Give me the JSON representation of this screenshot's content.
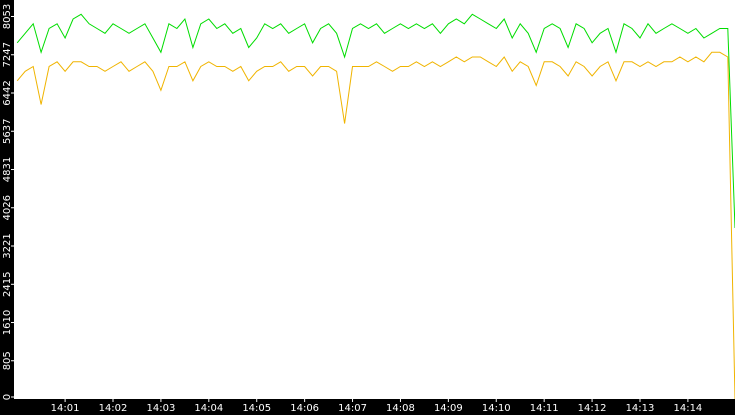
{
  "chart_data": {
    "type": "line",
    "x": [
      0,
      10,
      20,
      30,
      40,
      50,
      60,
      70,
      80,
      90,
      100,
      110,
      120,
      130,
      140,
      150,
      160,
      170,
      180,
      190,
      200,
      210,
      220,
      230,
      240,
      250,
      260,
      270,
      280,
      290,
      300,
      310,
      320,
      330,
      340,
      350,
      360,
      370,
      380,
      390,
      400,
      410,
      420,
      430,
      440,
      450,
      460,
      470,
      480,
      490,
      500,
      510,
      520,
      530,
      540,
      550,
      560,
      570,
      580,
      590,
      600,
      610,
      620,
      630,
      640,
      650,
      660,
      670,
      680,
      690,
      700,
      710,
      720,
      730,
      740,
      750,
      760,
      770,
      780,
      790,
      800,
      810,
      820,
      830,
      840,
      850,
      860,
      870,
      880,
      890,
      899
    ],
    "series": [
      {
        "color": "#00dd00",
        "values": [
          7500,
          7700,
          7900,
          7300,
          7800,
          7900,
          7600,
          8000,
          8100,
          7900,
          7800,
          7700,
          7900,
          7800,
          7700,
          7800,
          7900,
          7600,
          7300,
          7900,
          7800,
          8000,
          7400,
          7900,
          8000,
          7800,
          7900,
          7700,
          7800,
          7400,
          7600,
          7900,
          7800,
          7900,
          7700,
          7800,
          7900,
          7500,
          7800,
          7900,
          7700,
          7200,
          7800,
          7900,
          7800,
          7900,
          7700,
          7800,
          7900,
          7800,
          7900,
          7800,
          7900,
          7700,
          7900,
          8000,
          7900,
          8100,
          8000,
          7900,
          7800,
          8000,
          7600,
          7900,
          7700,
          7300,
          7800,
          7900,
          7800,
          7400,
          7900,
          7800,
          7500,
          7700,
          7800,
          7300,
          7900,
          7800,
          7600,
          7900,
          7700,
          7800,
          7900,
          7800,
          7700,
          7800,
          7600,
          7700,
          7800,
          7800,
          3600
        ]
      },
      {
        "color": "#f0b400",
        "values": [
          6700,
          6900,
          7000,
          6200,
          7000,
          7100,
          6900,
          7100,
          7100,
          7000,
          7000,
          6900,
          7000,
          7100,
          6900,
          7000,
          7100,
          6900,
          6500,
          7000,
          7000,
          7100,
          6700,
          7000,
          7100,
          7000,
          7000,
          6900,
          7000,
          6700,
          6900,
          7000,
          7000,
          7100,
          6900,
          7000,
          7000,
          6800,
          7000,
          7000,
          6900,
          5800,
          7000,
          7000,
          7000,
          7100,
          7000,
          6900,
          7000,
          7000,
          7100,
          7000,
          7100,
          7000,
          7100,
          7200,
          7100,
          7200,
          7200,
          7100,
          7000,
          7200,
          6900,
          7100,
          7000,
          6600,
          7100,
          7100,
          7000,
          6800,
          7100,
          7000,
          6800,
          7000,
          7100,
          6700,
          7100,
          7100,
          7000,
          7100,
          7000,
          7100,
          7100,
          7200,
          7100,
          7200,
          7100,
          7300,
          7300,
          7200,
          0
        ]
      }
    ],
    "xlim": [
      -4,
      899
    ],
    "xticks": [
      {
        "value": 60,
        "label": "14:01"
      },
      {
        "value": 120,
        "label": "14:02"
      },
      {
        "value": 180,
        "label": "14:03"
      },
      {
        "value": 240,
        "label": "14:04"
      },
      {
        "value": 300,
        "label": "14:05"
      },
      {
        "value": 360,
        "label": "14:06"
      },
      {
        "value": 420,
        "label": "14:07"
      },
      {
        "value": 480,
        "label": "14:08"
      },
      {
        "value": 540,
        "label": "14:09"
      },
      {
        "value": 600,
        "label": "14:10"
      },
      {
        "value": 660,
        "label": "14:11"
      },
      {
        "value": 720,
        "label": "14:12"
      },
      {
        "value": 780,
        "label": "14:13"
      },
      {
        "value": 840,
        "label": "14:14"
      }
    ],
    "ylim": [
      0,
      8400
    ],
    "yticks": [
      0,
      805,
      1610,
      2415,
      3221,
      4026,
      4831,
      5637,
      6442,
      7247,
      8053
    ]
  }
}
